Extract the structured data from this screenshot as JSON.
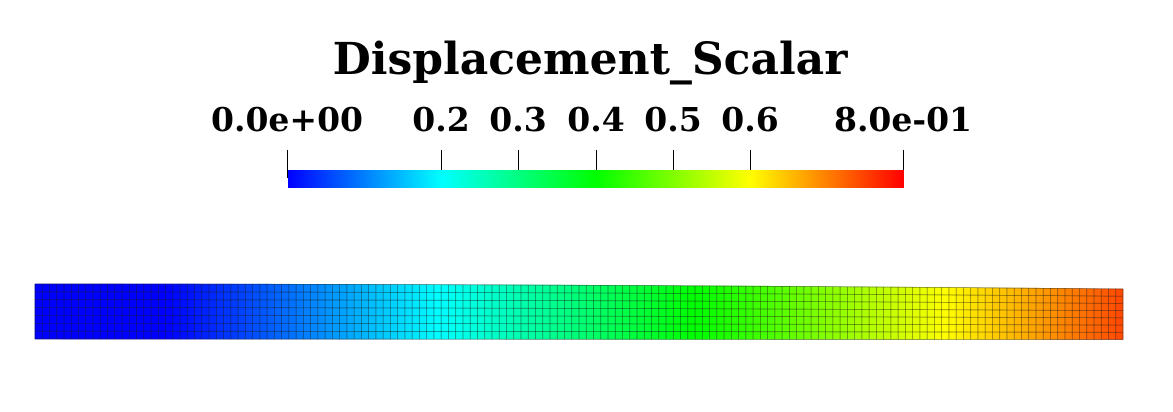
{
  "legend": {
    "title": "Displacement_Scalar",
    "range": [
      0.0,
      0.8
    ],
    "ticks": [
      {
        "value": 0.0,
        "label": "0.0e+00"
      },
      {
        "value": 0.2,
        "label": "0.2"
      },
      {
        "value": 0.3,
        "label": "0.3"
      },
      {
        "value": 0.4,
        "label": "0.4"
      },
      {
        "value": 0.5,
        "label": "0.5"
      },
      {
        "value": 0.6,
        "label": "0.6"
      },
      {
        "value": 0.8,
        "label": "8.0e-01"
      }
    ],
    "colormap": [
      "#0000ff",
      "#00ffff",
      "#00ff00",
      "#ffff00",
      "#ff0000"
    ]
  },
  "mesh": {
    "columns": 150,
    "rows": 7,
    "edge_color": "#1a1a1a"
  }
}
